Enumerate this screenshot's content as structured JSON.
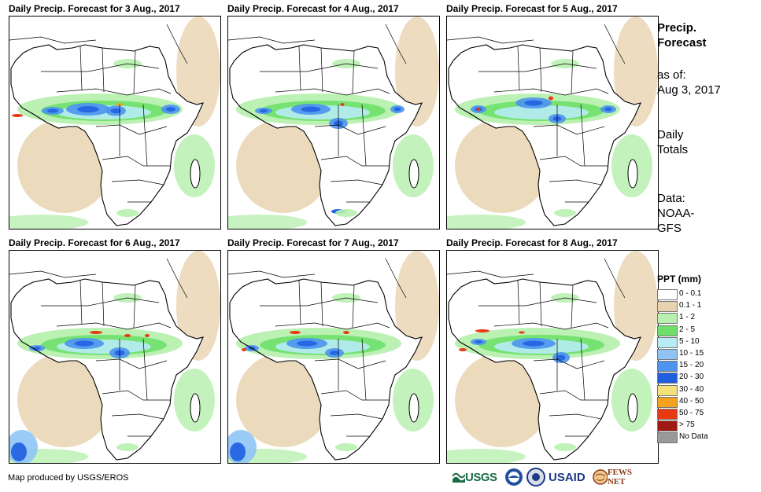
{
  "panels": [
    {
      "title": "Daily Precip. Forecast for 3 Aug., 2017"
    },
    {
      "title": "Daily Precip. Forecast for 4 Aug., 2017"
    },
    {
      "title": "Daily Precip. Forecast for 5 Aug., 2017"
    },
    {
      "title": "Daily Precip. Forecast for 6 Aug., 2017"
    },
    {
      "title": "Daily Precip. Forecast for 7 Aug., 2017"
    },
    {
      "title": "Daily Precip. Forecast for 8 Aug., 2017"
    }
  ],
  "sidebar": {
    "heading_line1": "Precip.",
    "heading_line2": "Forecast",
    "as_of_label": "as of:",
    "as_of_date": "Aug 3, 2017",
    "daily_line1": "Daily",
    "daily_line2": "Totals",
    "data_label": "Data:",
    "data_line2": "NOAA-",
    "data_line3": "GFS"
  },
  "legend": {
    "title": "PPT (mm)",
    "items": [
      {
        "label": "0 - 0.1",
        "color": "#ffffff"
      },
      {
        "label": "0.1 - 1",
        "color": "#e8d3b0"
      },
      {
        "label": "1 - 2",
        "color": "#b8f0b0"
      },
      {
        "label": "2 - 5",
        "color": "#6ee06a"
      },
      {
        "label": "5 - 10",
        "color": "#b8ecf5"
      },
      {
        "label": "10 - 15",
        "color": "#8fc4f5"
      },
      {
        "label": "15 - 20",
        "color": "#4d94ef"
      },
      {
        "label": "20 - 30",
        "color": "#1f5ee0"
      },
      {
        "label": "30 - 40",
        "color": "#f5e07a"
      },
      {
        "label": "40 - 50",
        "color": "#f5a21e"
      },
      {
        "label": "50 - 75",
        "color": "#e83a12"
      },
      {
        "label": "> 75",
        "color": "#a01a14"
      },
      {
        "label": "No Data",
        "color": "#999999"
      }
    ]
  },
  "footer": {
    "credit": "Map produced by USGS/EROS",
    "logos": {
      "usgs": "USGS",
      "usaid": "USAID",
      "fews": "FEWS NET"
    }
  }
}
